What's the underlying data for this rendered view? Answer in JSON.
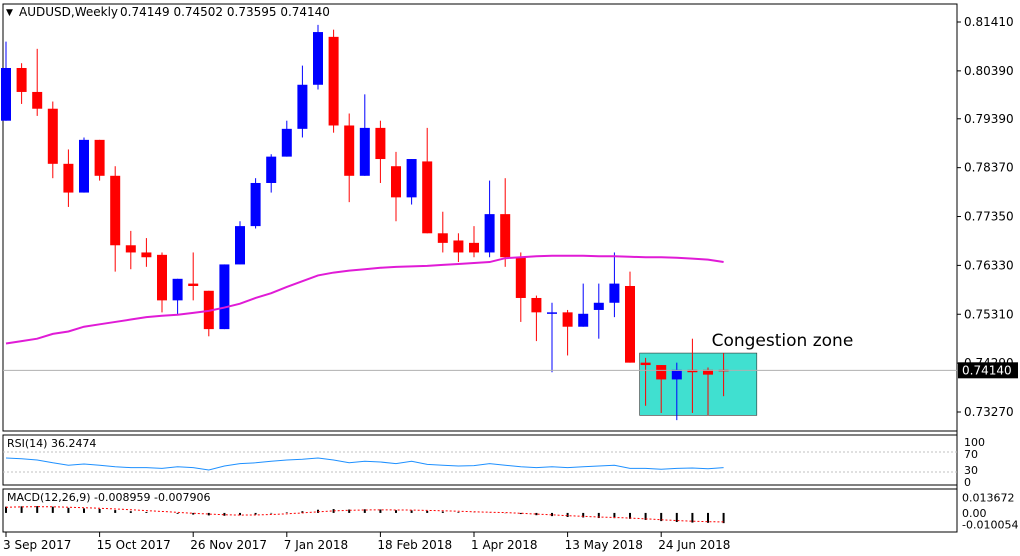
{
  "header": {
    "symbol": "AUDUSD,Weekly",
    "ohlc": "0.74149 0.74502 0.73595 0.74140"
  },
  "price_panel": {
    "price_ticks": [
      "0.81410",
      "0.80390",
      "0.79390",
      "0.78370",
      "0.77350",
      "0.76330",
      "0.75310",
      "0.74290",
      "0.73270"
    ],
    "current_price": "0.74140",
    "annotation": "Congestion zone"
  },
  "rsi_panel": {
    "label": "RSI(14) 36.2474",
    "ticks": [
      "100",
      "70",
      "30",
      "0"
    ]
  },
  "macd_panel": {
    "label": "MACD(12,26,9) -0.008959 -0.007906",
    "ticks": [
      "0.013672",
      "0.00",
      "-0.010054"
    ]
  },
  "x_axis": {
    "labels": [
      "3 Sep 2017",
      "15 Oct 2017",
      "26 Nov 2017",
      "7 Jan 2018",
      "18 Feb 2018",
      "1 Apr 2018",
      "13 May 2018",
      "24 Jun 2018"
    ]
  },
  "colors": {
    "bull": "#0000ff",
    "bear": "#ff0000",
    "ma": "#e01bd6",
    "rsi": "#1e90ff",
    "macd_signal": "#ff0000",
    "congestion": "#40e0d0",
    "annotation": "#30c0d0"
  },
  "chart_data": {
    "type": "candlestick",
    "timeframe": "Weekly",
    "y_range": [
      0.7295,
      0.8165
    ],
    "candles": [
      {
        "o": 0.7935,
        "h": 0.81,
        "l": 0.7935,
        "c": 0.8045
      },
      {
        "o": 0.8045,
        "h": 0.8055,
        "l": 0.797,
        "c": 0.7995
      },
      {
        "o": 0.7995,
        "h": 0.8085,
        "l": 0.7945,
        "c": 0.796
      },
      {
        "o": 0.796,
        "h": 0.7975,
        "l": 0.7815,
        "c": 0.7845
      },
      {
        "o": 0.7845,
        "h": 0.7875,
        "l": 0.7755,
        "c": 0.7785
      },
      {
        "o": 0.7785,
        "h": 0.79,
        "l": 0.7785,
        "c": 0.7895
      },
      {
        "o": 0.7895,
        "h": 0.7895,
        "l": 0.781,
        "c": 0.782
      },
      {
        "o": 0.782,
        "h": 0.784,
        "l": 0.762,
        "c": 0.7675
      },
      {
        "o": 0.7675,
        "h": 0.7705,
        "l": 0.7625,
        "c": 0.766
      },
      {
        "o": 0.766,
        "h": 0.769,
        "l": 0.763,
        "c": 0.765
      },
      {
        "o": 0.7655,
        "h": 0.766,
        "l": 0.7535,
        "c": 0.756
      },
      {
        "o": 0.756,
        "h": 0.7605,
        "l": 0.753,
        "c": 0.7605
      },
      {
        "o": 0.7595,
        "h": 0.766,
        "l": 0.756,
        "c": 0.759
      },
      {
        "o": 0.758,
        "h": 0.758,
        "l": 0.7485,
        "c": 0.75
      },
      {
        "o": 0.75,
        "h": 0.7635,
        "l": 0.75,
        "c": 0.7635
      },
      {
        "o": 0.7635,
        "h": 0.7725,
        "l": 0.7635,
        "c": 0.7715
      },
      {
        "o": 0.7715,
        "h": 0.7815,
        "l": 0.771,
        "c": 0.7805
      },
      {
        "o": 0.7805,
        "h": 0.7865,
        "l": 0.7785,
        "c": 0.786
      },
      {
        "o": 0.786,
        "h": 0.7935,
        "l": 0.786,
        "c": 0.7918
      },
      {
        "o": 0.7918,
        "h": 0.805,
        "l": 0.79,
        "c": 0.801
      },
      {
        "o": 0.801,
        "h": 0.8135,
        "l": 0.8,
        "c": 0.812
      },
      {
        "o": 0.811,
        "h": 0.8125,
        "l": 0.791,
        "c": 0.7925
      },
      {
        "o": 0.7925,
        "h": 0.795,
        "l": 0.7765,
        "c": 0.782
      },
      {
        "o": 0.782,
        "h": 0.799,
        "l": 0.782,
        "c": 0.792
      },
      {
        "o": 0.792,
        "h": 0.7935,
        "l": 0.7805,
        "c": 0.7855
      },
      {
        "o": 0.784,
        "h": 0.787,
        "l": 0.7725,
        "c": 0.7775
      },
      {
        "o": 0.7775,
        "h": 0.7855,
        "l": 0.776,
        "c": 0.7855
      },
      {
        "o": 0.785,
        "h": 0.792,
        "l": 0.77,
        "c": 0.77
      },
      {
        "o": 0.77,
        "h": 0.7745,
        "l": 0.766,
        "c": 0.768
      },
      {
        "o": 0.7685,
        "h": 0.77,
        "l": 0.764,
        "c": 0.766
      },
      {
        "o": 0.768,
        "h": 0.7715,
        "l": 0.765,
        "c": 0.766
      },
      {
        "o": 0.766,
        "h": 0.781,
        "l": 0.765,
        "c": 0.774
      },
      {
        "o": 0.774,
        "h": 0.7815,
        "l": 0.763,
        "c": 0.765
      },
      {
        "o": 0.765,
        "h": 0.766,
        "l": 0.7515,
        "c": 0.7565
      },
      {
        "o": 0.7565,
        "h": 0.757,
        "l": 0.7475,
        "c": 0.7535
      },
      {
        "o": 0.7535,
        "h": 0.7555,
        "l": 0.741,
        "c": 0.7535
      },
      {
        "o": 0.7535,
        "h": 0.754,
        "l": 0.7445,
        "c": 0.7505
      },
      {
        "o": 0.7505,
        "h": 0.7595,
        "l": 0.7505,
        "c": 0.7532
      },
      {
        "o": 0.754,
        "h": 0.7595,
        "l": 0.748,
        "c": 0.7555
      },
      {
        "o": 0.7555,
        "h": 0.766,
        "l": 0.7525,
        "c": 0.7595
      },
      {
        "o": 0.759,
        "h": 0.762,
        "l": 0.743,
        "c": 0.743
      },
      {
        "o": 0.743,
        "h": 0.744,
        "l": 0.734,
        "c": 0.7425
      },
      {
        "o": 0.7425,
        "h": 0.7425,
        "l": 0.7325,
        "c": 0.7395
      },
      {
        "o": 0.7395,
        "h": 0.743,
        "l": 0.731,
        "c": 0.7415
      },
      {
        "o": 0.7415,
        "h": 0.748,
        "l": 0.7325,
        "c": 0.741
      },
      {
        "o": 0.7415,
        "h": 0.742,
        "l": 0.732,
        "c": 0.7405
      },
      {
        "o": 0.7415,
        "h": 0.745,
        "l": 0.736,
        "c": 0.7414
      }
    ],
    "moving_average": [
      0.747,
      0.7475,
      0.748,
      0.749,
      0.7495,
      0.7505,
      0.751,
      0.7515,
      0.752,
      0.7525,
      0.7528,
      0.753,
      0.7534,
      0.7538,
      0.7545,
      0.7553,
      0.7565,
      0.7575,
      0.7588,
      0.76,
      0.7612,
      0.7618,
      0.7622,
      0.7625,
      0.7628,
      0.763,
      0.7631,
      0.7632,
      0.7634,
      0.7636,
      0.7638,
      0.764,
      0.7648,
      0.765,
      0.7652,
      0.7653,
      0.7653,
      0.7653,
      0.7652,
      0.7652,
      0.7651,
      0.765,
      0.765,
      0.7649,
      0.7647,
      0.7645,
      0.764
    ],
    "congestion_zone": {
      "start_candle": 41,
      "end_candle": 48,
      "low": 0.732,
      "high": 0.745
    },
    "rsi": {
      "ylim": [
        0,
        100
      ],
      "values": [
        60,
        58,
        55,
        48,
        42,
        45,
        42,
        38,
        36,
        36,
        34,
        38,
        36,
        30,
        40,
        46,
        48,
        52,
        55,
        57,
        60,
        55,
        48,
        52,
        50,
        46,
        52,
        44,
        42,
        40,
        41,
        46,
        42,
        38,
        36,
        38,
        36,
        38,
        40,
        42,
        34,
        34,
        32,
        34,
        35,
        33,
        36
      ]
    },
    "macd": {
      "ylim": [
        -0.0115,
        0.014
      ],
      "histogram": [
        0.0055,
        0.0058,
        0.006,
        0.0055,
        0.0045,
        0.004,
        0.0035,
        0.0025,
        0.0015,
        0.0008,
        0.0,
        -0.0008,
        -0.0015,
        -0.0022,
        -0.0025,
        -0.002,
        -0.0014,
        -0.0005,
        0.0005,
        0.0015,
        0.0028,
        0.0034,
        0.003,
        0.0032,
        0.003,
        0.0024,
        0.0022,
        0.0018,
        0.0012,
        0.0006,
        0.0001,
        0.0001,
        -0.0002,
        -0.001,
        -0.002,
        -0.0028,
        -0.0036,
        -0.004,
        -0.0045,
        -0.0046,
        -0.0052,
        -0.0062,
        -0.0072,
        -0.008,
        -0.0085,
        -0.0087,
        -0.009
      ],
      "signal": [
        0.005,
        0.0053,
        0.0055,
        0.0054,
        0.005,
        0.0046,
        0.0041,
        0.0035,
        0.0028,
        0.002,
        0.0013,
        0.0005,
        -0.0003,
        -0.001,
        -0.0016,
        -0.0019,
        -0.0018,
        -0.0014,
        -0.0008,
        0.0,
        0.001,
        0.0018,
        0.0023,
        0.0026,
        0.0027,
        0.0026,
        0.0025,
        0.0022,
        0.0019,
        0.0015,
        0.001,
        0.0006,
        0.0003,
        -0.0003,
        -0.001,
        -0.0017,
        -0.0024,
        -0.003,
        -0.0036,
        -0.004,
        -0.0045,
        -0.0052,
        -0.006,
        -0.0067,
        -0.0073,
        -0.0077,
        -0.0079
      ]
    }
  }
}
